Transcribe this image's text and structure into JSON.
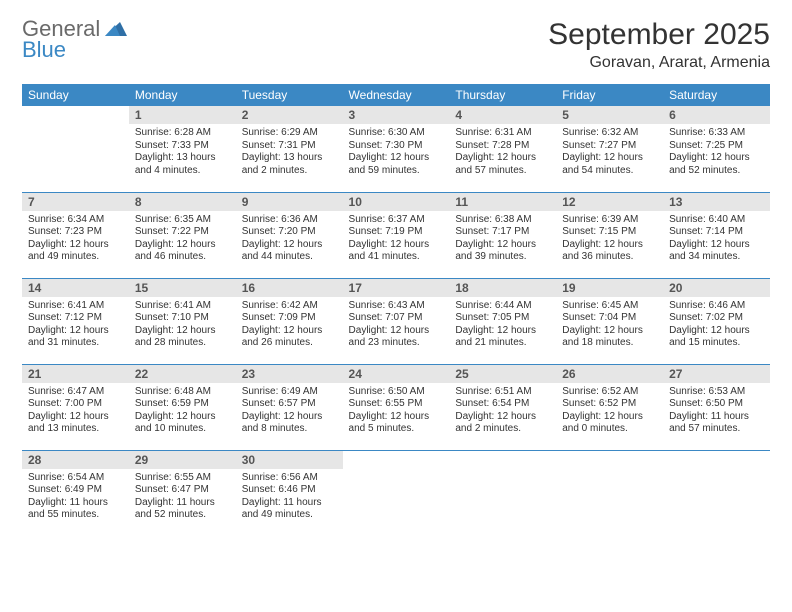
{
  "header": {
    "logo_general": "General",
    "logo_blue": "Blue",
    "month_title": "September 2025",
    "location": "Goravan, Ararat, Armenia"
  },
  "colors": {
    "header_bg": "#3b88c4",
    "header_text": "#ffffff",
    "daynum_bg": "#e6e6e6",
    "rule": "#3b88c4",
    "logo_general": "#6a6a6a",
    "logo_blue": "#3b88c4"
  },
  "weekdays": [
    "Sunday",
    "Monday",
    "Tuesday",
    "Wednesday",
    "Thursday",
    "Friday",
    "Saturday"
  ],
  "weeks": [
    [
      null,
      {
        "n": "1",
        "sunrise": "Sunrise: 6:28 AM",
        "sunset": "Sunset: 7:33 PM",
        "day1": "Daylight: 13 hours",
        "day2": "and 4 minutes."
      },
      {
        "n": "2",
        "sunrise": "Sunrise: 6:29 AM",
        "sunset": "Sunset: 7:31 PM",
        "day1": "Daylight: 13 hours",
        "day2": "and 2 minutes."
      },
      {
        "n": "3",
        "sunrise": "Sunrise: 6:30 AM",
        "sunset": "Sunset: 7:30 PM",
        "day1": "Daylight: 12 hours",
        "day2": "and 59 minutes."
      },
      {
        "n": "4",
        "sunrise": "Sunrise: 6:31 AM",
        "sunset": "Sunset: 7:28 PM",
        "day1": "Daylight: 12 hours",
        "day2": "and 57 minutes."
      },
      {
        "n": "5",
        "sunrise": "Sunrise: 6:32 AM",
        "sunset": "Sunset: 7:27 PM",
        "day1": "Daylight: 12 hours",
        "day2": "and 54 minutes."
      },
      {
        "n": "6",
        "sunrise": "Sunrise: 6:33 AM",
        "sunset": "Sunset: 7:25 PM",
        "day1": "Daylight: 12 hours",
        "day2": "and 52 minutes."
      }
    ],
    [
      {
        "n": "7",
        "sunrise": "Sunrise: 6:34 AM",
        "sunset": "Sunset: 7:23 PM",
        "day1": "Daylight: 12 hours",
        "day2": "and 49 minutes."
      },
      {
        "n": "8",
        "sunrise": "Sunrise: 6:35 AM",
        "sunset": "Sunset: 7:22 PM",
        "day1": "Daylight: 12 hours",
        "day2": "and 46 minutes."
      },
      {
        "n": "9",
        "sunrise": "Sunrise: 6:36 AM",
        "sunset": "Sunset: 7:20 PM",
        "day1": "Daylight: 12 hours",
        "day2": "and 44 minutes."
      },
      {
        "n": "10",
        "sunrise": "Sunrise: 6:37 AM",
        "sunset": "Sunset: 7:19 PM",
        "day1": "Daylight: 12 hours",
        "day2": "and 41 minutes."
      },
      {
        "n": "11",
        "sunrise": "Sunrise: 6:38 AM",
        "sunset": "Sunset: 7:17 PM",
        "day1": "Daylight: 12 hours",
        "day2": "and 39 minutes."
      },
      {
        "n": "12",
        "sunrise": "Sunrise: 6:39 AM",
        "sunset": "Sunset: 7:15 PM",
        "day1": "Daylight: 12 hours",
        "day2": "and 36 minutes."
      },
      {
        "n": "13",
        "sunrise": "Sunrise: 6:40 AM",
        "sunset": "Sunset: 7:14 PM",
        "day1": "Daylight: 12 hours",
        "day2": "and 34 minutes."
      }
    ],
    [
      {
        "n": "14",
        "sunrise": "Sunrise: 6:41 AM",
        "sunset": "Sunset: 7:12 PM",
        "day1": "Daylight: 12 hours",
        "day2": "and 31 minutes."
      },
      {
        "n": "15",
        "sunrise": "Sunrise: 6:41 AM",
        "sunset": "Sunset: 7:10 PM",
        "day1": "Daylight: 12 hours",
        "day2": "and 28 minutes."
      },
      {
        "n": "16",
        "sunrise": "Sunrise: 6:42 AM",
        "sunset": "Sunset: 7:09 PM",
        "day1": "Daylight: 12 hours",
        "day2": "and 26 minutes."
      },
      {
        "n": "17",
        "sunrise": "Sunrise: 6:43 AM",
        "sunset": "Sunset: 7:07 PM",
        "day1": "Daylight: 12 hours",
        "day2": "and 23 minutes."
      },
      {
        "n": "18",
        "sunrise": "Sunrise: 6:44 AM",
        "sunset": "Sunset: 7:05 PM",
        "day1": "Daylight: 12 hours",
        "day2": "and 21 minutes."
      },
      {
        "n": "19",
        "sunrise": "Sunrise: 6:45 AM",
        "sunset": "Sunset: 7:04 PM",
        "day1": "Daylight: 12 hours",
        "day2": "and 18 minutes."
      },
      {
        "n": "20",
        "sunrise": "Sunrise: 6:46 AM",
        "sunset": "Sunset: 7:02 PM",
        "day1": "Daylight: 12 hours",
        "day2": "and 15 minutes."
      }
    ],
    [
      {
        "n": "21",
        "sunrise": "Sunrise: 6:47 AM",
        "sunset": "Sunset: 7:00 PM",
        "day1": "Daylight: 12 hours",
        "day2": "and 13 minutes."
      },
      {
        "n": "22",
        "sunrise": "Sunrise: 6:48 AM",
        "sunset": "Sunset: 6:59 PM",
        "day1": "Daylight: 12 hours",
        "day2": "and 10 minutes."
      },
      {
        "n": "23",
        "sunrise": "Sunrise: 6:49 AM",
        "sunset": "Sunset: 6:57 PM",
        "day1": "Daylight: 12 hours",
        "day2": "and 8 minutes."
      },
      {
        "n": "24",
        "sunrise": "Sunrise: 6:50 AM",
        "sunset": "Sunset: 6:55 PM",
        "day1": "Daylight: 12 hours",
        "day2": "and 5 minutes."
      },
      {
        "n": "25",
        "sunrise": "Sunrise: 6:51 AM",
        "sunset": "Sunset: 6:54 PM",
        "day1": "Daylight: 12 hours",
        "day2": "and 2 minutes."
      },
      {
        "n": "26",
        "sunrise": "Sunrise: 6:52 AM",
        "sunset": "Sunset: 6:52 PM",
        "day1": "Daylight: 12 hours",
        "day2": "and 0 minutes."
      },
      {
        "n": "27",
        "sunrise": "Sunrise: 6:53 AM",
        "sunset": "Sunset: 6:50 PM",
        "day1": "Daylight: 11 hours",
        "day2": "and 57 minutes."
      }
    ],
    [
      {
        "n": "28",
        "sunrise": "Sunrise: 6:54 AM",
        "sunset": "Sunset: 6:49 PM",
        "day1": "Daylight: 11 hours",
        "day2": "and 55 minutes."
      },
      {
        "n": "29",
        "sunrise": "Sunrise: 6:55 AM",
        "sunset": "Sunset: 6:47 PM",
        "day1": "Daylight: 11 hours",
        "day2": "and 52 minutes."
      },
      {
        "n": "30",
        "sunrise": "Sunrise: 6:56 AM",
        "sunset": "Sunset: 6:46 PM",
        "day1": "Daylight: 11 hours",
        "day2": "and 49 minutes."
      },
      null,
      null,
      null,
      null
    ]
  ]
}
